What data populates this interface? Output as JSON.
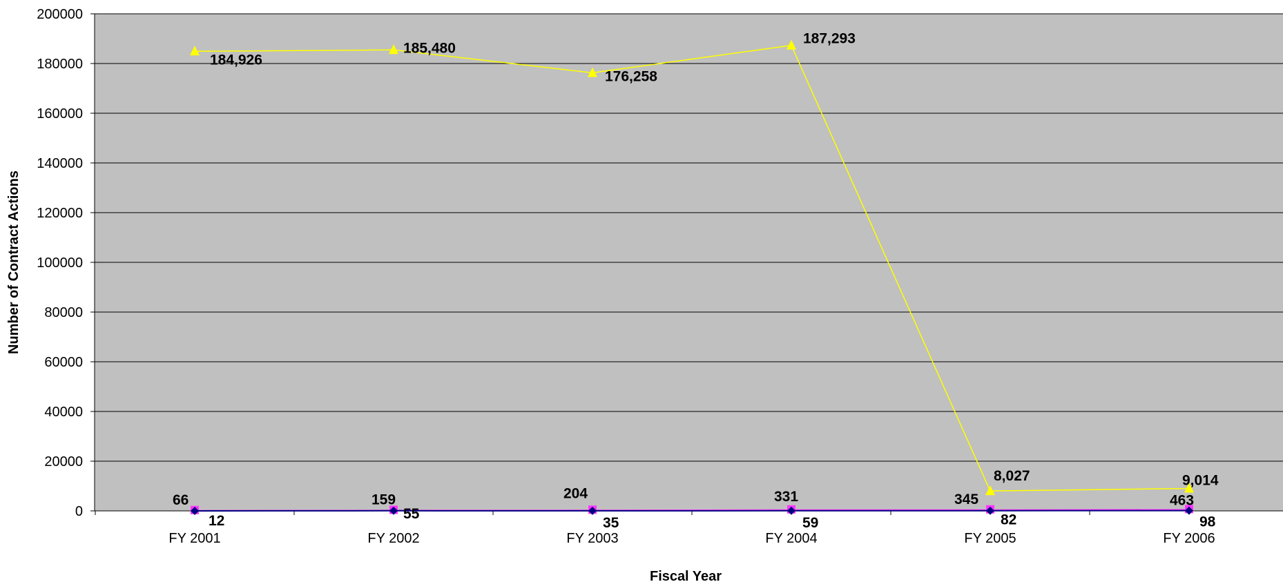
{
  "chart_data": {
    "type": "line",
    "title": "",
    "xlabel": "Fiscal Year",
    "ylabel": "Number of Contract Actions",
    "categories": [
      "FY 2001",
      "FY 2002",
      "FY 2003",
      "FY 2004",
      "FY 2005",
      "FY 2006"
    ],
    "ylim": [
      0,
      200000
    ],
    "yticks": [
      "0",
      "20000",
      "40000",
      "60000",
      "80000",
      "100000",
      "120000",
      "140000",
      "160000",
      "180000",
      "200000"
    ],
    "grid": true,
    "legend": "none",
    "series": [
      {
        "color": "#ffff00",
        "marker": "triangle",
        "values": [
          184926,
          185480,
          176258,
          187293,
          8027,
          9014
        ],
        "labels": [
          "184,926",
          "185,480",
          "176,258",
          "187,293",
          "8,027",
          "9,014"
        ]
      },
      {
        "color": "#ff33ff",
        "marker": "square",
        "values": [
          66,
          159,
          204,
          331,
          345,
          463
        ],
        "labels": [
          "66",
          "159",
          "204",
          "331",
          "345",
          "463"
        ]
      },
      {
        "color": "#000080",
        "marker": "diamond",
        "values": [
          12,
          55,
          35,
          59,
          82,
          98
        ],
        "labels": [
          "12",
          "55",
          "35",
          "59",
          "82",
          "98"
        ]
      }
    ]
  },
  "colors": {
    "plot_background": "#c0c0c0",
    "gridline": "#000000"
  }
}
